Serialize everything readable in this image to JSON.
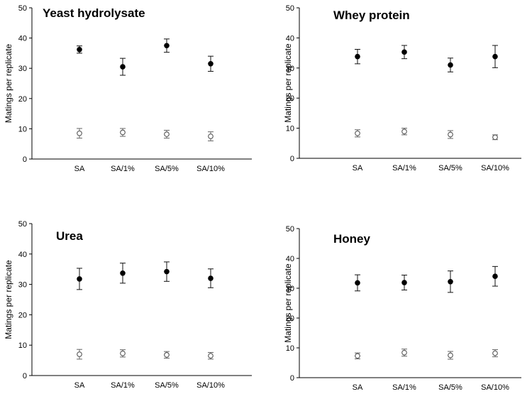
{
  "chart_data": [
    {
      "type": "scatter",
      "title": "Yeast hydrolysate",
      "xlabel": "",
      "ylabel": "Matings per replicate",
      "ylim": [
        0,
        50
      ],
      "yticks": [
        0,
        10,
        20,
        30,
        40,
        50
      ],
      "categories": [
        "SA",
        "SA/1%",
        "SA/5%",
        "SA/10%"
      ],
      "legend": "none",
      "grid": false,
      "series": [
        {
          "marker": "filled-circle",
          "color": "#000000",
          "values": [
            36.2,
            30.5,
            37.5,
            31.5
          ],
          "errors": [
            1.2,
            2.8,
            2.2,
            2.5
          ]
        },
        {
          "marker": "open-circle",
          "color": "#555555",
          "values": [
            8.5,
            8.8,
            8.2,
            7.5
          ],
          "errors": [
            1.6,
            1.3,
            1.3,
            1.5
          ]
        }
      ]
    },
    {
      "type": "scatter",
      "title": "Whey protein",
      "xlabel": "",
      "ylabel": "Matings per replicate",
      "ylim": [
        0,
        50
      ],
      "yticks": [
        0,
        10,
        20,
        30,
        40,
        50
      ],
      "categories": [
        "SA",
        "SA/1%",
        "SA/5%",
        "SA/10%"
      ],
      "legend": "none",
      "grid": false,
      "series": [
        {
          "marker": "filled-circle",
          "color": "#000000",
          "values": [
            33.8,
            35.3,
            31.0,
            33.8
          ],
          "errors": [
            2.4,
            2.2,
            2.3,
            3.7
          ]
        },
        {
          "marker": "open-circle",
          "color": "#555555",
          "values": [
            8.3,
            8.9,
            7.9,
            7.0
          ],
          "errors": [
            1.2,
            1.1,
            1.3,
            0.8
          ]
        }
      ]
    },
    {
      "type": "scatter",
      "title": "Urea",
      "xlabel": "",
      "ylabel": "Matings per replicate",
      "ylim": [
        0,
        50
      ],
      "yticks": [
        0,
        10,
        20,
        30,
        40,
        50
      ],
      "categories": [
        "SA",
        "SA/1%",
        "SA/5%",
        "SA/10%"
      ],
      "legend": "none",
      "grid": false,
      "series": [
        {
          "marker": "filled-circle",
          "color": "#000000",
          "values": [
            31.8,
            33.7,
            34.2,
            32.0
          ],
          "errors": [
            3.5,
            3.3,
            3.2,
            3.1
          ]
        },
        {
          "marker": "open-circle",
          "color": "#555555",
          "values": [
            7.0,
            7.3,
            6.8,
            6.5
          ],
          "errors": [
            1.6,
            1.2,
            1.1,
            1.1
          ]
        }
      ]
    },
    {
      "type": "scatter",
      "title": "Honey",
      "xlabel": "",
      "ylabel": "Matings per replicate",
      "ylim": [
        0,
        50
      ],
      "yticks": [
        0,
        10,
        20,
        30,
        40,
        50
      ],
      "categories": [
        "SA",
        "SA/1%",
        "SA/5%",
        "SA/10%"
      ],
      "legend": "none",
      "grid": false,
      "series": [
        {
          "marker": "filled-circle",
          "color": "#000000",
          "values": [
            31.8,
            31.9,
            32.2,
            34.0
          ],
          "errors": [
            2.7,
            2.5,
            3.6,
            3.3
          ]
        },
        {
          "marker": "open-circle",
          "color": "#555555",
          "values": [
            7.3,
            8.4,
            7.5,
            8.2
          ],
          "errors": [
            1.0,
            1.2,
            1.3,
            1.2
          ]
        }
      ]
    }
  ]
}
